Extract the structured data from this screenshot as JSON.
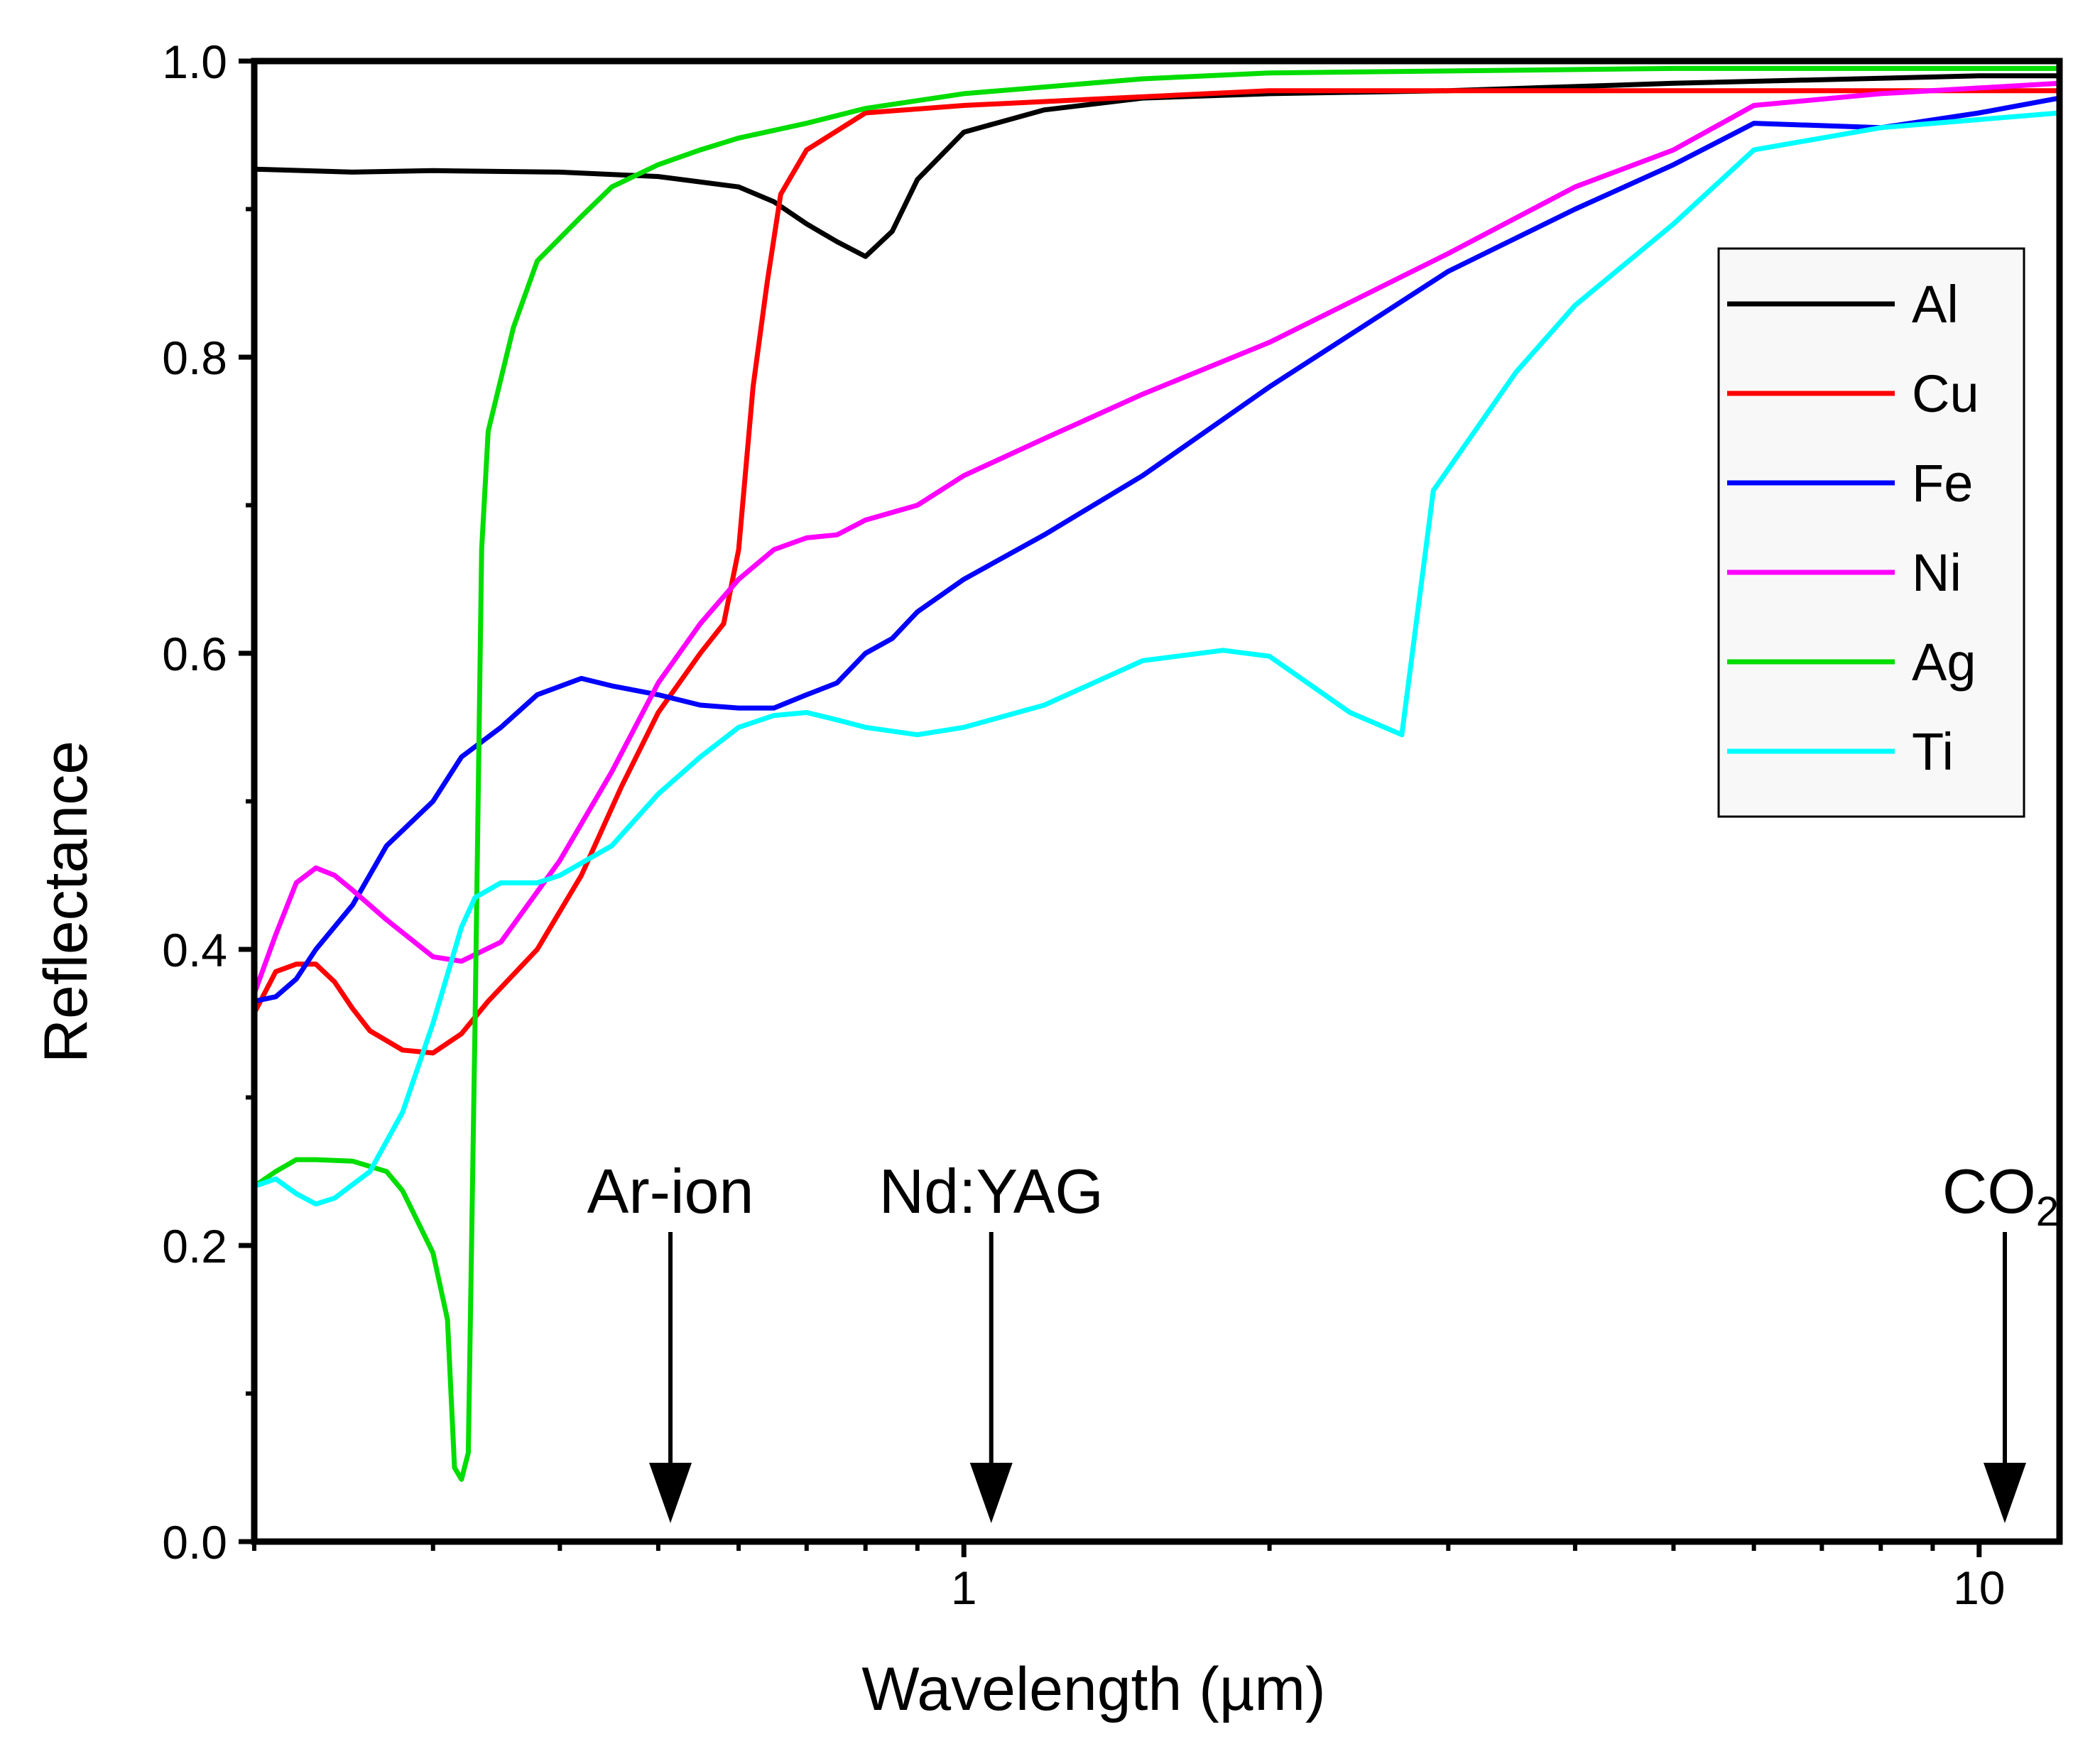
{
  "chart_data": {
    "type": "line",
    "title": "",
    "xlabel": "Wavelength (µm)",
    "ylabel": "Reflectance",
    "xscale": "log",
    "xlim": [
      0.2,
      12
    ],
    "ylim": [
      0,
      1.0
    ],
    "grid": false,
    "legend_position": "top-right",
    "x_ticks": [
      {
        "value": 1,
        "label": "1"
      },
      {
        "value": 10,
        "label": "10"
      }
    ],
    "y_ticks": [
      {
        "value": 0.0,
        "label": "0.0"
      },
      {
        "value": 0.2,
        "label": "0.2"
      },
      {
        "value": 0.4,
        "label": "0.4"
      },
      {
        "value": 0.6,
        "label": "0.6"
      },
      {
        "value": 0.8,
        "label": "0.8"
      },
      {
        "value": 1.0,
        "label": "1.0"
      }
    ],
    "series": [
      {
        "name": "Al",
        "color": "#000000",
        "points": [
          [
            0.2,
            0.927
          ],
          [
            0.25,
            0.925
          ],
          [
            0.3,
            0.926
          ],
          [
            0.4,
            0.925
          ],
          [
            0.5,
            0.922
          ],
          [
            0.6,
            0.915
          ],
          [
            0.65,
            0.905
          ],
          [
            0.7,
            0.89
          ],
          [
            0.75,
            0.878
          ],
          [
            0.8,
            0.868
          ],
          [
            0.85,
            0.885
          ],
          [
            0.9,
            0.92
          ],
          [
            1.0,
            0.952
          ],
          [
            1.2,
            0.967
          ],
          [
            1.5,
            0.975
          ],
          [
            2,
            0.978
          ],
          [
            3,
            0.98
          ],
          [
            5,
            0.985
          ],
          [
            10,
            0.99
          ],
          [
            12,
            0.99
          ]
        ]
      },
      {
        "name": "Cu",
        "color": "#ff0000",
        "points": [
          [
            0.2,
            0.357
          ],
          [
            0.21,
            0.385
          ],
          [
            0.22,
            0.39
          ],
          [
            0.23,
            0.39
          ],
          [
            0.24,
            0.378
          ],
          [
            0.25,
            0.36
          ],
          [
            0.26,
            0.345
          ],
          [
            0.28,
            0.332
          ],
          [
            0.3,
            0.33
          ],
          [
            0.32,
            0.343
          ],
          [
            0.34,
            0.365
          ],
          [
            0.38,
            0.4
          ],
          [
            0.42,
            0.45
          ],
          [
            0.46,
            0.51
          ],
          [
            0.5,
            0.56
          ],
          [
            0.55,
            0.6
          ],
          [
            0.58,
            0.62
          ],
          [
            0.6,
            0.67
          ],
          [
            0.62,
            0.78
          ],
          [
            0.64,
            0.85
          ],
          [
            0.66,
            0.91
          ],
          [
            0.7,
            0.94
          ],
          [
            0.8,
            0.965
          ],
          [
            1.0,
            0.97
          ],
          [
            2,
            0.98
          ],
          [
            5,
            0.98
          ],
          [
            12,
            0.98
          ]
        ]
      },
      {
        "name": "Fe",
        "color": "#0000ff",
        "points": [
          [
            0.2,
            0.365
          ],
          [
            0.21,
            0.368
          ],
          [
            0.22,
            0.38
          ],
          [
            0.23,
            0.4
          ],
          [
            0.25,
            0.43
          ],
          [
            0.27,
            0.47
          ],
          [
            0.3,
            0.5
          ],
          [
            0.32,
            0.53
          ],
          [
            0.35,
            0.55
          ],
          [
            0.38,
            0.572
          ],
          [
            0.42,
            0.583
          ],
          [
            0.45,
            0.578
          ],
          [
            0.5,
            0.572
          ],
          [
            0.55,
            0.565
          ],
          [
            0.6,
            0.563
          ],
          [
            0.65,
            0.563
          ],
          [
            0.7,
            0.572
          ],
          [
            0.75,
            0.58
          ],
          [
            0.8,
            0.6
          ],
          [
            0.85,
            0.61
          ],
          [
            0.9,
            0.628
          ],
          [
            1.0,
            0.65
          ],
          [
            1.2,
            0.68
          ],
          [
            1.5,
            0.72
          ],
          [
            2,
            0.78
          ],
          [
            3,
            0.858
          ],
          [
            4,
            0.9
          ],
          [
            5,
            0.93
          ],
          [
            6,
            0.958
          ],
          [
            8,
            0.955
          ],
          [
            10,
            0.965
          ],
          [
            12,
            0.975
          ]
        ]
      },
      {
        "name": "Ni",
        "color": "#ff00ff",
        "points": [
          [
            0.2,
            0.37
          ],
          [
            0.21,
            0.41
          ],
          [
            0.22,
            0.445
          ],
          [
            0.23,
            0.455
          ],
          [
            0.24,
            0.45
          ],
          [
            0.25,
            0.44
          ],
          [
            0.27,
            0.42
          ],
          [
            0.3,
            0.395
          ],
          [
            0.32,
            0.392
          ],
          [
            0.35,
            0.405
          ],
          [
            0.4,
            0.46
          ],
          [
            0.45,
            0.52
          ],
          [
            0.5,
            0.58
          ],
          [
            0.55,
            0.62
          ],
          [
            0.6,
            0.65
          ],
          [
            0.65,
            0.67
          ],
          [
            0.7,
            0.678
          ],
          [
            0.75,
            0.68
          ],
          [
            0.8,
            0.69
          ],
          [
            0.9,
            0.7
          ],
          [
            1.0,
            0.72
          ],
          [
            1.2,
            0.745
          ],
          [
            1.5,
            0.775
          ],
          [
            2,
            0.81
          ],
          [
            3,
            0.87
          ],
          [
            4,
            0.915
          ],
          [
            5,
            0.94
          ],
          [
            6,
            0.97
          ],
          [
            8,
            0.978
          ],
          [
            12,
            0.985
          ]
        ]
      },
      {
        "name": "Ag",
        "color": "#00dd00",
        "points": [
          [
            0.2,
            0.24
          ],
          [
            0.21,
            0.25
          ],
          [
            0.22,
            0.258
          ],
          [
            0.23,
            0.258
          ],
          [
            0.25,
            0.257
          ],
          [
            0.27,
            0.25
          ],
          [
            0.28,
            0.237
          ],
          [
            0.3,
            0.195
          ],
          [
            0.31,
            0.15
          ],
          [
            0.315,
            0.05
          ],
          [
            0.32,
            0.042
          ],
          [
            0.325,
            0.06
          ],
          [
            0.33,
            0.35
          ],
          [
            0.335,
            0.67
          ],
          [
            0.34,
            0.75
          ],
          [
            0.36,
            0.82
          ],
          [
            0.38,
            0.865
          ],
          [
            0.42,
            0.895
          ],
          [
            0.45,
            0.915
          ],
          [
            0.5,
            0.93
          ],
          [
            0.55,
            0.94
          ],
          [
            0.6,
            0.948
          ],
          [
            0.7,
            0.958
          ],
          [
            0.8,
            0.968
          ],
          [
            1.0,
            0.978
          ],
          [
            1.5,
            0.988
          ],
          [
            2,
            0.992
          ],
          [
            5,
            0.995
          ],
          [
            12,
            0.995
          ]
        ]
      },
      {
        "name": "Ti",
        "color": "#00ffff",
        "points": [
          [
            0.2,
            0.24
          ],
          [
            0.21,
            0.245
          ],
          [
            0.22,
            0.235
          ],
          [
            0.23,
            0.228
          ],
          [
            0.24,
            0.232
          ],
          [
            0.26,
            0.25
          ],
          [
            0.28,
            0.29
          ],
          [
            0.3,
            0.35
          ],
          [
            0.32,
            0.415
          ],
          [
            0.33,
            0.435
          ],
          [
            0.35,
            0.445
          ],
          [
            0.38,
            0.445
          ],
          [
            0.4,
            0.45
          ],
          [
            0.45,
            0.47
          ],
          [
            0.5,
            0.505
          ],
          [
            0.55,
            0.53
          ],
          [
            0.6,
            0.55
          ],
          [
            0.65,
            0.558
          ],
          [
            0.7,
            0.56
          ],
          [
            0.75,
            0.555
          ],
          [
            0.8,
            0.55
          ],
          [
            0.9,
            0.545
          ],
          [
            1.0,
            0.55
          ],
          [
            1.2,
            0.565
          ],
          [
            1.5,
            0.595
          ],
          [
            1.8,
            0.602
          ],
          [
            2,
            0.598
          ],
          [
            2.4,
            0.56
          ],
          [
            2.7,
            0.545
          ],
          [
            2.9,
            0.71
          ],
          [
            3.5,
            0.79
          ],
          [
            4,
            0.835
          ],
          [
            5,
            0.89
          ],
          [
            6,
            0.94
          ],
          [
            8,
            0.955
          ],
          [
            12,
            0.965
          ]
        ]
      }
    ],
    "annotations": [
      {
        "label": "Ar-ion",
        "x": 0.514
      },
      {
        "label": "Nd:YAG",
        "x": 1.064
      },
      {
        "label": "CO",
        "subscript": "2",
        "x": 10.6
      }
    ]
  }
}
